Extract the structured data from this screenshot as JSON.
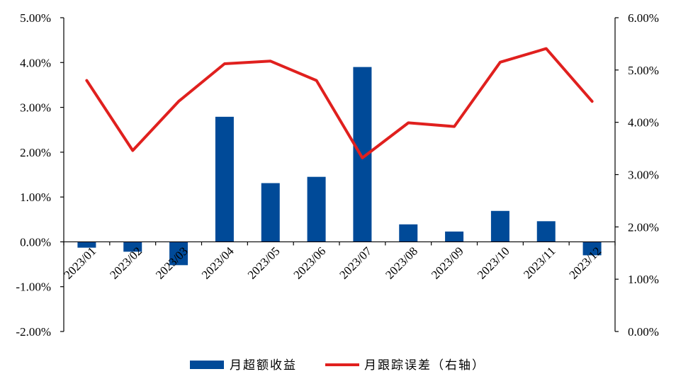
{
  "chart_data": {
    "type": "bar+line",
    "categories": [
      "2023/01",
      "2023/02",
      "2023/03",
      "2023/04",
      "2023/05",
      "2023/06",
      "2023/07",
      "2023/08",
      "2023/09",
      "2023/10",
      "2023/11",
      "2023/12"
    ],
    "series": [
      {
        "name": "月超额收益",
        "type": "bar",
        "axis": "left",
        "color": "#004a98",
        "values": [
          -0.13,
          -0.22,
          -0.52,
          2.79,
          1.31,
          1.45,
          3.9,
          0.39,
          0.23,
          0.69,
          0.46,
          -0.3
        ]
      },
      {
        "name": "月跟踪误差（右轴）",
        "type": "line",
        "axis": "right",
        "color": "#e0201e",
        "values": [
          4.8,
          3.46,
          4.4,
          5.12,
          5.17,
          4.8,
          3.32,
          3.99,
          3.92,
          5.15,
          5.41,
          4.4
        ]
      }
    ],
    "left_axis": {
      "ylim": [
        -2,
        5
      ],
      "ticks": [
        -2,
        -1,
        0,
        1,
        2,
        3,
        4,
        5
      ],
      "tick_labels": [
        "-2.00%",
        "-1.00%",
        "0.00%",
        "1.00%",
        "2.00%",
        "3.00%",
        "4.00%",
        "5.00%"
      ]
    },
    "right_axis": {
      "ylim": [
        0,
        6
      ],
      "ticks": [
        0,
        1,
        2,
        3,
        4,
        5,
        6
      ],
      "tick_labels": [
        "0.00%",
        "1.00%",
        "2.00%",
        "3.00%",
        "4.00%",
        "5.00%",
        "6.00%"
      ]
    },
    "grid": false,
    "legend_position": "bottom-center"
  }
}
